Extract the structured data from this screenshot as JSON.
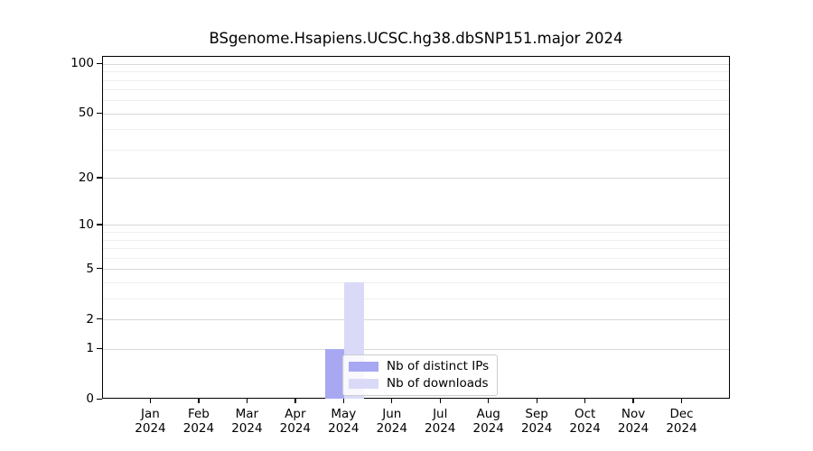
{
  "chart_data": {
    "type": "bar",
    "title": "BSgenome.Hsapiens.UCSC.hg38.dbSNP151.major 2024",
    "categories": [
      "Jan",
      "Feb",
      "Mar",
      "Apr",
      "May",
      "Jun",
      "Jul",
      "Aug",
      "Sep",
      "Oct",
      "Nov",
      "Dec"
    ],
    "category_year": "2024",
    "series": [
      {
        "name": "Nb of distinct IPs",
        "color": "#a8a8f2",
        "values": [
          0,
          0,
          0,
          0,
          1,
          0,
          0,
          0,
          0,
          0,
          0,
          0
        ]
      },
      {
        "name": "Nb of downloads",
        "color": "#dadaf8",
        "values": [
          0,
          0,
          0,
          0,
          4,
          0,
          0,
          0,
          0,
          0,
          0,
          0
        ]
      }
    ],
    "yscale": "log1p",
    "yticks": [
      0,
      1,
      2,
      5,
      10,
      20,
      50,
      100
    ],
    "minor_gridlines": [
      3,
      4,
      6,
      7,
      8,
      9,
      30,
      40,
      60,
      70,
      80,
      90
    ],
    "ylim": [
      0,
      111
    ],
    "grid": true,
    "legend_position": "inside-lower-center"
  },
  "colors": {
    "background": "#ffffff",
    "spine": "#000000",
    "grid_major": "#d8d8d8",
    "grid_minor": "#efefef",
    "legend_border": "#cccccc",
    "text": "#000000"
  }
}
